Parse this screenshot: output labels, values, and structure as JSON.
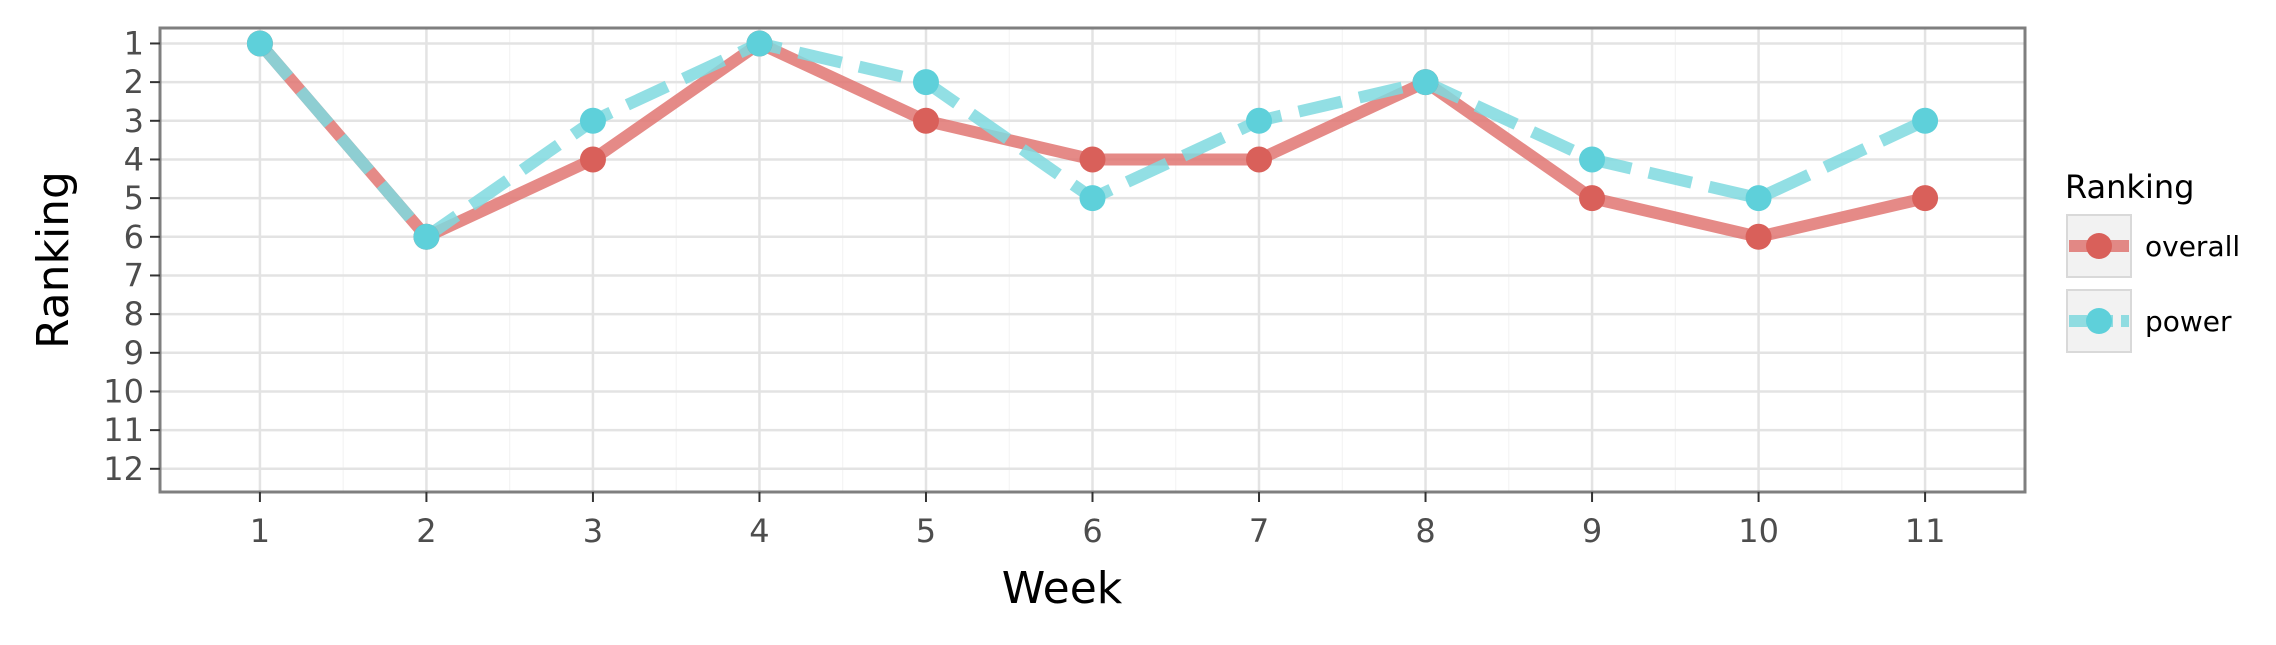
{
  "chart_data": {
    "type": "line",
    "title": "",
    "xlabel": "Week",
    "ylabel": "Ranking",
    "x": [
      1,
      2,
      3,
      4,
      5,
      6,
      7,
      8,
      9,
      10,
      11
    ],
    "x_ticks": [
      "1",
      "2",
      "3",
      "4",
      "5",
      "6",
      "7",
      "8",
      "9",
      "10",
      "11"
    ],
    "y_ticks": [
      "1",
      "2",
      "3",
      "4",
      "5",
      "6",
      "7",
      "8",
      "9",
      "10",
      "11",
      "12"
    ],
    "xlim": [
      0.4,
      11.6
    ],
    "ylim": [
      0.6,
      12.6
    ],
    "y_reversed": true,
    "grid": true,
    "legend": {
      "title": "Ranking",
      "position": "right"
    },
    "series": [
      {
        "name": "overall",
        "values": [
          1,
          6,
          4,
          1,
          3,
          4,
          4,
          2,
          5,
          6,
          5
        ],
        "color": "#e07672",
        "marker_color": "#d9605a",
        "line_style": "solid"
      },
      {
        "name": "power",
        "values": [
          1,
          6,
          3,
          1,
          2,
          5,
          3,
          2,
          4,
          5,
          3
        ],
        "color": "#7fd9df",
        "marker_color": "#5ed0da",
        "line_style": "dashed"
      }
    ]
  }
}
